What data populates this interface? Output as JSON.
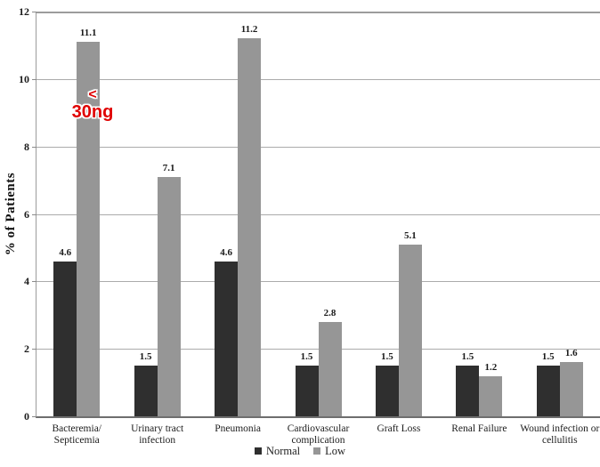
{
  "chart_data": {
    "type": "bar",
    "title": "",
    "xlabel": "",
    "ylabel": "% of Patients",
    "ylim": [
      0,
      12
    ],
    "yticks": [
      0,
      2,
      4,
      6,
      8,
      10,
      12
    ],
    "grid": true,
    "legend_position": "bottom-center",
    "value_labels_shown": true,
    "categories": [
      "Bacteremia/\nSepticemia",
      "Urinary tract\ninfection",
      "Pneumonia",
      "Cardiovascular\ncomplication",
      "Graft Loss",
      "Renal Failure",
      "Wound infection or\ncellulitis"
    ],
    "series": [
      {
        "name": "Normal",
        "color": "#2f2f2f",
        "values": [
          4.6,
          1.5,
          4.6,
          1.5,
          1.5,
          1.5,
          1.5
        ]
      },
      {
        "name": "Low",
        "color": "#969696",
        "values": [
          11.1,
          7.1,
          11.2,
          2.8,
          5.1,
          1.2,
          1.6
        ]
      }
    ]
  },
  "annotation": {
    "line1": "<",
    "line2": "30ng",
    "color": "#e00000"
  },
  "colors": {
    "background": "#ffffff",
    "gridline": "#ababab",
    "axis": "#6e6e6e",
    "text": "#1c1c1c"
  }
}
